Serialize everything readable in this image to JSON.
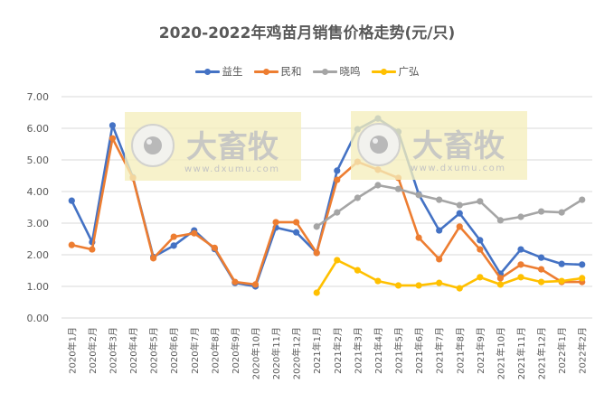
{
  "title": "2020-2022年鸡苗月销售价格走势(元/只)",
  "watermark": {
    "brand": "大畜牧",
    "url": "www.dxumu.com"
  },
  "chart_data": {
    "type": "line",
    "title": "2020-2022年鸡苗月销售价格走势(元/只)",
    "xlabel": "",
    "ylabel": "",
    "ylim": [
      0,
      7
    ],
    "yticks": [
      "0.00",
      "1.00",
      "2.00",
      "3.00",
      "4.00",
      "5.00",
      "6.00",
      "7.00"
    ],
    "grid": true,
    "legend_position": "top",
    "categories": [
      "2020年1月",
      "2020年2月",
      "2020年3月",
      "2020年4月",
      "2020年5月",
      "2020年6月",
      "2020年7月",
      "2020年8月",
      "2020年9月",
      "2020年10月",
      "2020年11月",
      "2020年12月",
      "2021年1月",
      "2021年2月",
      "2021年3月",
      "2021年4月",
      "2021年5月",
      "2021年6月",
      "2021年7月",
      "2021年8月",
      "2021年9月",
      "2021年10月",
      "2021年11月",
      "2021年12月",
      "2022年1月",
      "2022年2月"
    ],
    "series": [
      {
        "name": "益生",
        "color": "#4472C4",
        "values": [
          3.71,
          2.4,
          6.09,
          4.45,
          1.93,
          2.29,
          2.77,
          2.18,
          1.11,
          1.0,
          2.86,
          2.71,
          2.06,
          4.66,
          5.97,
          6.31,
          5.89,
          3.91,
          2.77,
          3.31,
          2.46,
          1.4,
          2.17,
          1.91,
          1.71,
          1.69
        ]
      },
      {
        "name": "民和",
        "color": "#ED7D31",
        "values": [
          2.31,
          2.17,
          5.68,
          4.43,
          1.89,
          2.57,
          2.68,
          2.22,
          1.14,
          1.06,
          3.03,
          3.03,
          2.06,
          4.37,
          4.94,
          4.69,
          4.43,
          2.54,
          1.86,
          2.89,
          2.17,
          1.26,
          1.69,
          1.54,
          1.14,
          1.14
        ]
      },
      {
        "name": "晓鸣",
        "color": "#A5A5A5",
        "values": [
          null,
          null,
          null,
          null,
          null,
          null,
          null,
          null,
          null,
          null,
          null,
          null,
          2.89,
          3.34,
          3.8,
          4.2,
          4.08,
          3.89,
          3.74,
          3.57,
          3.69,
          3.09,
          3.2,
          3.37,
          3.34,
          3.74
        ]
      },
      {
        "name": "广弘",
        "color": "#FFC000",
        "values": [
          null,
          null,
          null,
          null,
          null,
          null,
          null,
          null,
          null,
          null,
          null,
          null,
          0.8,
          1.83,
          1.51,
          1.17,
          1.03,
          1.03,
          1.11,
          0.94,
          1.29,
          1.06,
          1.29,
          1.14,
          1.17,
          1.26
        ]
      }
    ]
  },
  "legend": [
    {
      "label": "益生",
      "color": "#4472C4"
    },
    {
      "label": "民和",
      "color": "#ED7D31"
    },
    {
      "label": "晓鸣",
      "color": "#A5A5A5"
    },
    {
      "label": "广弘",
      "color": "#FFC000"
    }
  ]
}
